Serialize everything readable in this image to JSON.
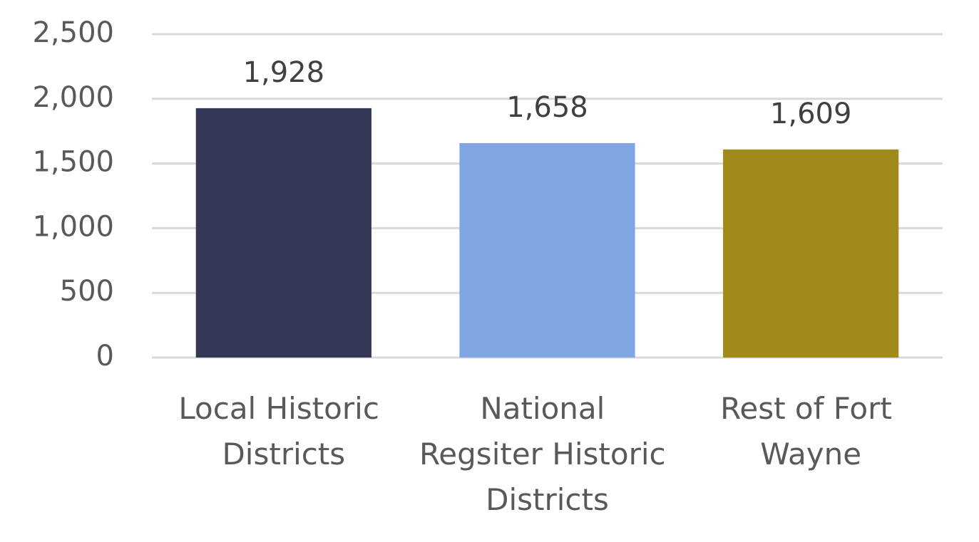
{
  "chart_data": {
    "type": "bar",
    "categories": [
      "Local Historic Districts",
      "National Regsiter Historic Districts",
      "Rest of Fort Wayne"
    ],
    "values": [
      1928,
      1658,
      1609
    ],
    "value_labels": [
      "1,928",
      "1,658",
      "1,609"
    ],
    "colors": [
      "#343856",
      "#7fa6e3",
      "#a08a1b"
    ],
    "ylim": [
      0,
      2500
    ],
    "yticks": [
      0,
      500,
      {
        "value": 1000,
        "label": "1,000"
      },
      {
        "value": 1500,
        "label": "1,500"
      },
      {
        "value": 2000,
        "label": "2,000"
      },
      {
        "value": 2500,
        "label": "2,500"
      }
    ],
    "grid": true
  }
}
